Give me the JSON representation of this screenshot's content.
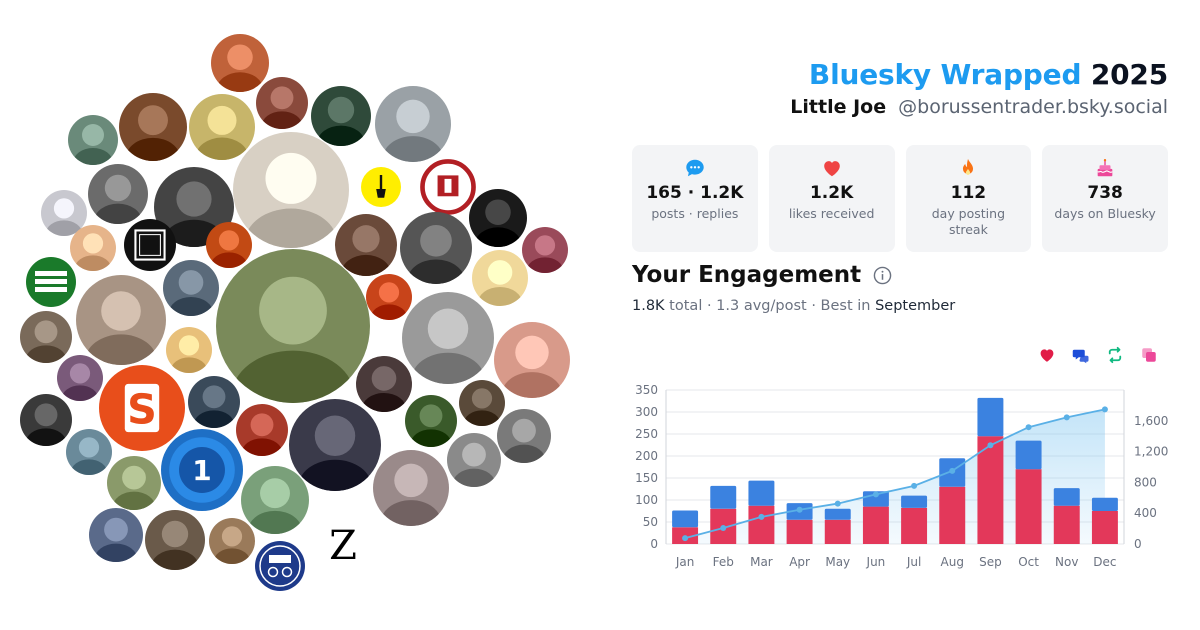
{
  "header": {
    "title_accent": "Bluesky Wrapped",
    "year": "2025",
    "user_name": "Little Joe",
    "handle": "@borussentrader.bsky.social"
  },
  "stats": [
    {
      "icon": "speech-bubble-icon",
      "value": "165 · 1.2K",
      "label": "posts · replies",
      "color": "#1d9bf0"
    },
    {
      "icon": "heart-icon",
      "value": "1.2K",
      "label": "likes received",
      "color": "#ef4444"
    },
    {
      "icon": "flame-icon",
      "value": "112",
      "label": "day posting streak",
      "color": "#f97316"
    },
    {
      "icon": "cake-icon",
      "value": "738",
      "label": "days on Bluesky",
      "color": "#ec4899"
    }
  ],
  "engagement": {
    "title": "Your Engagement",
    "total": "1.8K",
    "total_suffix": " total · 1.3 avg/post · Best in ",
    "best_month": "September",
    "legend": [
      {
        "icon": "heart-icon",
        "color": "#e11d48"
      },
      {
        "icon": "reply-icon",
        "color": "#1d4ed8"
      },
      {
        "icon": "repost-icon",
        "color": "#10b981"
      },
      {
        "icon": "quote-icon",
        "color": "#ec4899"
      }
    ]
  },
  "chart_data": {
    "type": "bar",
    "categories": [
      "Jan",
      "Feb",
      "Mar",
      "Apr",
      "May",
      "Jun",
      "Jul",
      "Aug",
      "Sep",
      "Oct",
      "Nov",
      "Dec"
    ],
    "series": [
      {
        "values": [
          38,
          80,
          87,
          55,
          55,
          85,
          82,
          130,
          245,
          170,
          87,
          75
        ],
        "color": "#e3385a"
      },
      {
        "values": [
          38,
          52,
          57,
          38,
          25,
          35,
          28,
          65,
          87,
          65,
          40,
          30
        ],
        "color": "#3b82e0"
      }
    ],
    "cumulative_line": {
      "values": [
        76,
        208,
        352,
        445,
        525,
        645,
        755,
        950,
        1282,
        1517,
        1644,
        1749
      ],
      "color": "#5ab0e6"
    },
    "ylim": [
      0,
      350
    ],
    "y_ticks": [
      "0",
      "50",
      "100",
      "150",
      "200",
      "250",
      "300",
      "350"
    ],
    "y2lim": [
      0,
      2000
    ],
    "y2_ticks": [
      "0",
      "400",
      "800",
      "1,200",
      "1,600"
    ],
    "grid": true
  },
  "bubbles": [
    {
      "name": "avatar-red-hair-woman",
      "c": "#c0623a"
    },
    {
      "name": "avatar-choker",
      "c": "#8a4a3c"
    },
    {
      "name": "avatar-woman-cardigan",
      "c": "#2f4a3a"
    },
    {
      "name": "avatar-older-man-glasses",
      "c": "#9aa1a6"
    },
    {
      "name": "avatar-man-mask",
      "c": "#6a8a7a"
    },
    {
      "name": "avatar-pinup",
      "c": "#7a4a2c"
    },
    {
      "name": "avatar-unicorn-cartoon",
      "c": "#c7b56a"
    },
    {
      "name": "avatar-lace-portrait",
      "c": "#d8d0c4"
    },
    {
      "name": "amnesty-logo",
      "c": "#ffee00"
    },
    {
      "name": "st-pauli-logo",
      "c": "#b21f24"
    },
    {
      "name": "avatar-braid",
      "c": "#6b6b6b"
    },
    {
      "name": "avatar-smile-bw",
      "c": "#444444"
    },
    {
      "name": "avatar-grey-hair",
      "c": "#c8c8cf"
    },
    {
      "name": "avatar-cartoon-man",
      "c": "#e6b48a"
    },
    {
      "name": "dazn-logo",
      "c": "#111111"
    },
    {
      "name": "avatar-explosion",
      "c": "#c24a14"
    },
    {
      "name": "avatar-book",
      "c": "#6a4a3a"
    },
    {
      "name": "avatar-pattern-bw",
      "c": "#555555"
    },
    {
      "name": "avatar-suit-tie",
      "c": "#1a1a1a"
    },
    {
      "name": "avatar-woman-teal",
      "c": "#9a4a5a"
    },
    {
      "name": "amadeu-antonio-logo",
      "c": "#1a7a2a"
    },
    {
      "name": "avatar-bun-hair",
      "c": "#a89484"
    },
    {
      "name": "avatar-woman-jacket",
      "c": "#5a6a7a"
    },
    {
      "name": "avatar-main-selfie",
      "c": "#7a8a5a"
    },
    {
      "name": "avatar-flower",
      "c": "#c8441a"
    },
    {
      "name": "avatar-heart-sand",
      "c": "#f0d89a"
    },
    {
      "name": "avatar-sunset",
      "c": "#7a6a5a"
    },
    {
      "name": "avatar-blonde-woman",
      "c": "#e8c07a"
    },
    {
      "name": "avatar-hands-bw",
      "c": "#9a9a9a"
    },
    {
      "name": "avatar-lips-finger",
      "c": "#d89a8a"
    },
    {
      "name": "avatar-purple",
      "c": "#7a5a7a"
    },
    {
      "name": "spiegel-s-logo",
      "c": "#e84e1b"
    },
    {
      "name": "avatar-man-office",
      "c": "#3a4a5a"
    },
    {
      "name": "avatar-lace-dark",
      "c": "#4a3a3a"
    },
    {
      "name": "avatar-man-curly",
      "c": "#5a4a3a"
    },
    {
      "name": "avatar-pride-flag",
      "c": "#3a3a3a"
    },
    {
      "name": "avatar-santa-hat",
      "c": "#a83a2a"
    },
    {
      "name": "avatar-politician",
      "c": "#3a3a4a"
    },
    {
      "name": "avatar-christmas-girl",
      "c": "#3a5a2a"
    },
    {
      "name": "avatar-man-glasses-2",
      "c": "#7a7a7a"
    },
    {
      "name": "avatar-man-beard",
      "c": "#6a8a9a"
    },
    {
      "name": "tagesschau-logo",
      "c": "#1e6fc5"
    },
    {
      "name": "avatar-man-checked",
      "c": "#8a9a6a"
    },
    {
      "name": "avatar-gray-bw",
      "c": "#8a8a8a"
    },
    {
      "name": "avatar-stocking",
      "c": "#9a8a8a"
    },
    {
      "name": "avatar-man-suit-glasses",
      "c": "#5a6a8a"
    },
    {
      "name": "avatar-man-bearded-glasses",
      "c": "#6a5a4a"
    },
    {
      "name": "avatar-dog",
      "c": "#9a7a5a"
    },
    {
      "name": "avatar-woman-short-hair",
      "c": "#7aa07a"
    },
    {
      "name": "radkolumne-logo",
      "c": "#1e3a8a"
    },
    {
      "name": "zeit-z-logo",
      "c": "#ffffff"
    }
  ]
}
